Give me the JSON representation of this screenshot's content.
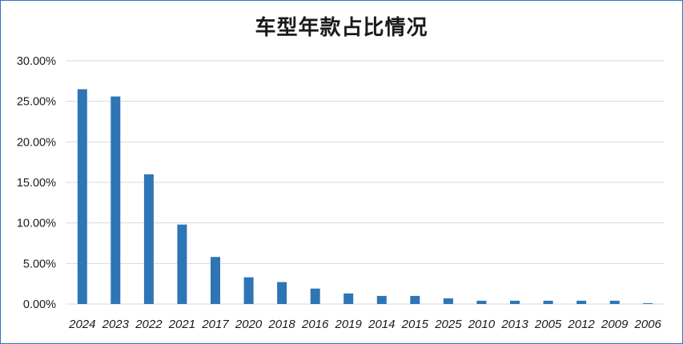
{
  "chart_data": {
    "type": "bar",
    "title": "车型年款占比情况",
    "categories": [
      "2024",
      "2023",
      "2022",
      "2021",
      "2017",
      "2020",
      "2018",
      "2016",
      "2019",
      "2014",
      "2015",
      "2025",
      "2010",
      "2013",
      "2005",
      "2012",
      "2009",
      "2006"
    ],
    "values": [
      26.5,
      25.6,
      16.0,
      9.8,
      5.8,
      3.3,
      2.7,
      1.9,
      1.3,
      1.0,
      1.0,
      0.7,
      0.4,
      0.4,
      0.4,
      0.4,
      0.4,
      0.1
    ],
    "ylim": [
      0,
      30
    ],
    "yticks": [
      "0.00%",
      "5.00%",
      "10.00%",
      "15.00%",
      "20.00%",
      "25.00%",
      "30.00%"
    ],
    "xlabel": "",
    "ylabel": "",
    "grid": true,
    "legend": "none",
    "bar_color": "#2e75b6",
    "grid_color": "#d9d9d9"
  }
}
